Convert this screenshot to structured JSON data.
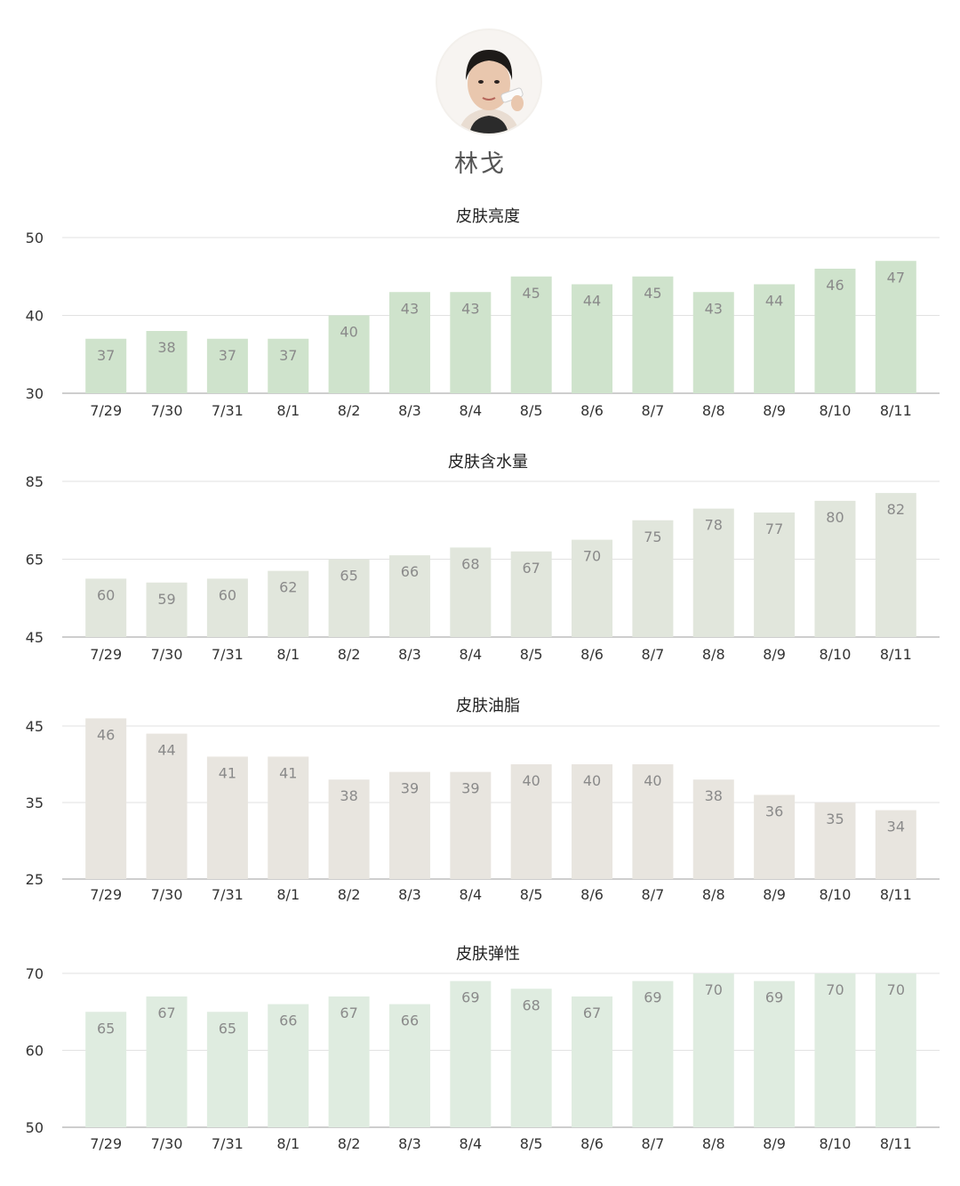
{
  "profile": {
    "name": "林戈"
  },
  "chart_data": [
    {
      "type": "bar",
      "title": "皮肤亮度",
      "color": "#cfe3cc",
      "categories": [
        "7/29",
        "7/30",
        "7/31",
        "8/1",
        "8/2",
        "8/3",
        "8/4",
        "8/5",
        "8/6",
        "8/7",
        "8/8",
        "8/9",
        "8/10",
        "8/11"
      ],
      "values": [
        37,
        38,
        37,
        37,
        40,
        43,
        43,
        45,
        44,
        45,
        43,
        44,
        46,
        47
      ],
      "ylim": [
        30,
        50
      ],
      "yticks": [
        30,
        40,
        50
      ]
    },
    {
      "type": "bar",
      "title": "皮肤含水量",
      "color": "#e1e6dc",
      "categories": [
        "7/29",
        "7/30",
        "7/31",
        "8/1",
        "8/2",
        "8/3",
        "8/4",
        "8/5",
        "8/6",
        "8/7",
        "8/8",
        "8/9",
        "8/10",
        "8/11"
      ],
      "values": [
        60,
        59,
        60,
        62,
        65,
        66,
        68,
        67,
        70,
        75,
        78,
        77,
        80,
        82
      ],
      "ylim": [
        45,
        85
      ],
      "yticks": [
        45,
        65,
        85
      ]
    },
    {
      "type": "bar",
      "title": "皮肤油脂",
      "color": "#e8e5df",
      "categories": [
        "7/29",
        "7/30",
        "7/31",
        "8/1",
        "8/2",
        "8/3",
        "8/4",
        "8/5",
        "8/6",
        "8/7",
        "8/8",
        "8/9",
        "8/10",
        "8/11"
      ],
      "values": [
        46,
        44,
        41,
        41,
        38,
        39,
        39,
        40,
        40,
        40,
        38,
        36,
        35,
        34
      ],
      "ylim": [
        25,
        45
      ],
      "yticks": [
        25,
        35,
        45
      ]
    },
    {
      "type": "bar",
      "title": "皮肤弹性",
      "color": "#dfece0",
      "categories": [
        "7/29",
        "7/30",
        "7/31",
        "8/1",
        "8/2",
        "8/3",
        "8/4",
        "8/5",
        "8/6",
        "8/7",
        "8/8",
        "8/9",
        "8/10",
        "8/11"
      ],
      "values": [
        65,
        67,
        65,
        66,
        67,
        66,
        69,
        68,
        67,
        69,
        70,
        69,
        70,
        70
      ],
      "ylim": [
        50,
        70
      ],
      "yticks": [
        50,
        60,
        70
      ]
    }
  ]
}
